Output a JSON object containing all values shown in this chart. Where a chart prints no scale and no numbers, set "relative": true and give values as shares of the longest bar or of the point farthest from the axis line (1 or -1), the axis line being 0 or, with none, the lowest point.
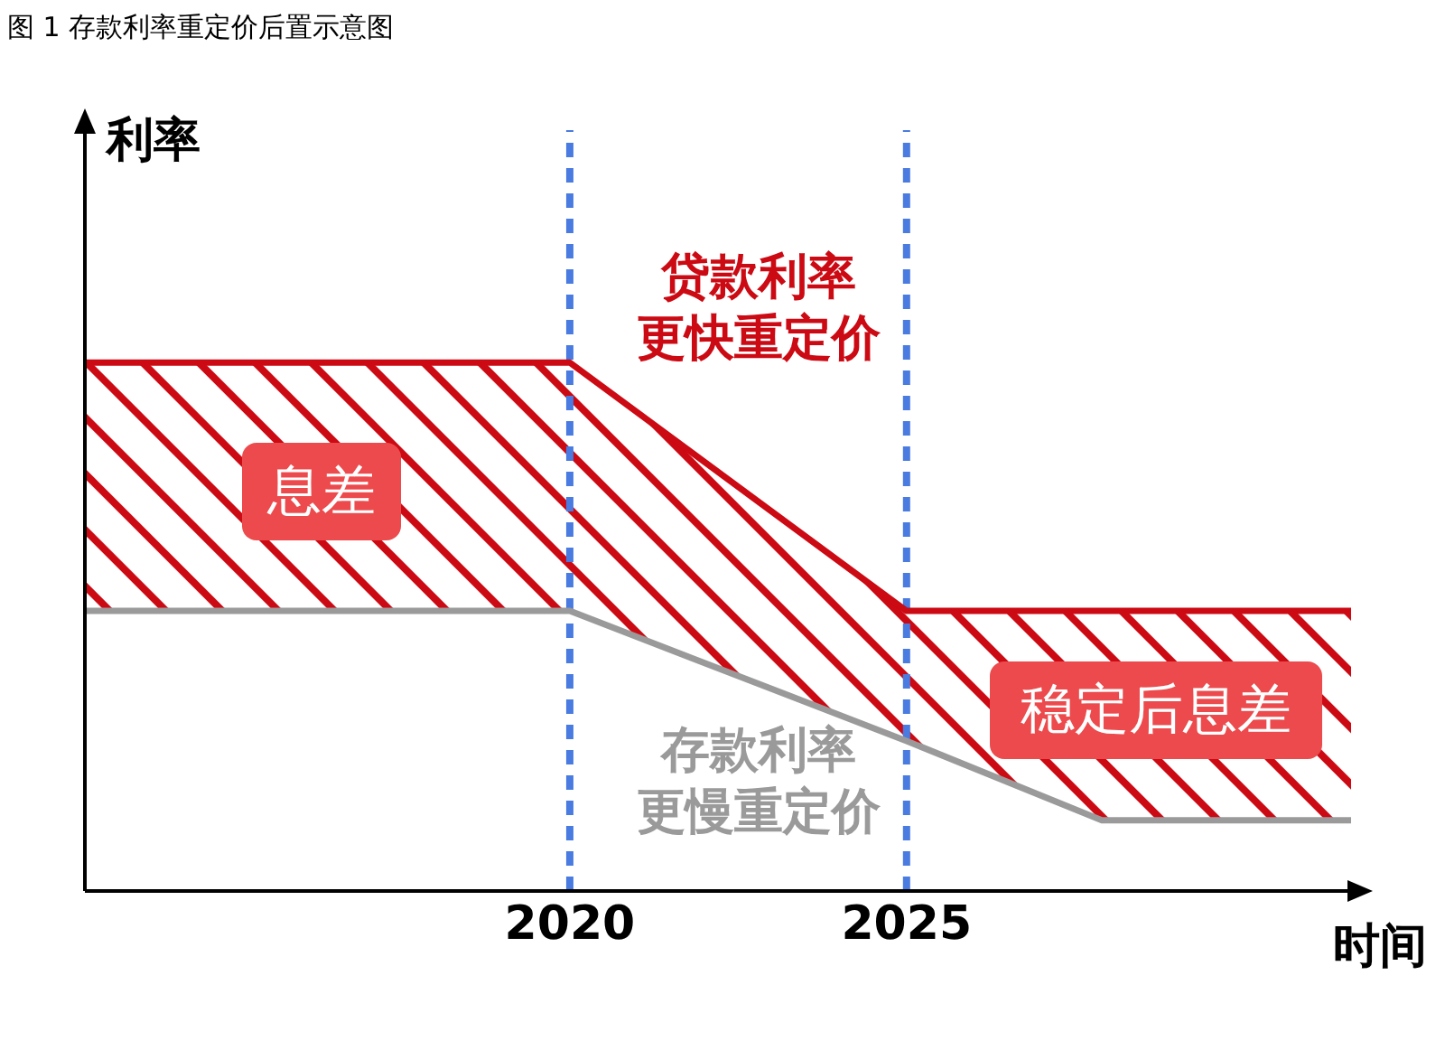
{
  "chart_data": {
    "type": "line",
    "title": "图 1 存款利率重定价后置示意图",
    "xlabel": "时间",
    "ylabel": "利率",
    "relative": true,
    "x": [
      2012.8,
      2020,
      2025,
      2027.9,
      2031.6
    ],
    "xlim": [
      2012.8,
      2031.6
    ],
    "xticks": [
      2020,
      2025
    ],
    "tick_labels": "x",
    "series": [
      {
        "color": "#cc0a14",
        "values": [
          1,
          1,
          0.53,
          0.53,
          0.53
        ],
        "lower": [
          0.53,
          0.53,
          0.284,
          0.134,
          0.134
        ],
        "upper": [
          1,
          1,
          0.53,
          0.53,
          0.53
        ]
      },
      {
        "color": "#9a9a9a",
        "values": [
          0.53,
          0.53,
          0.284,
          0.134,
          0.134
        ]
      }
    ],
    "ref_lines": [
      {
        "axis": "x",
        "value": 2020,
        "color": "#4a7be0",
        "line_style": "dashed"
      },
      {
        "axis": "x",
        "value": 2025,
        "color": "#4a7be0",
        "line_style": "dashed"
      }
    ],
    "annotations": [
      "贷款利率更快重定价",
      "存款利率更慢重定价",
      "息差",
      "稳定后息差"
    ],
    "grid": false,
    "legend": false,
    "marker": "none",
    "line_style": "solid"
  }
}
